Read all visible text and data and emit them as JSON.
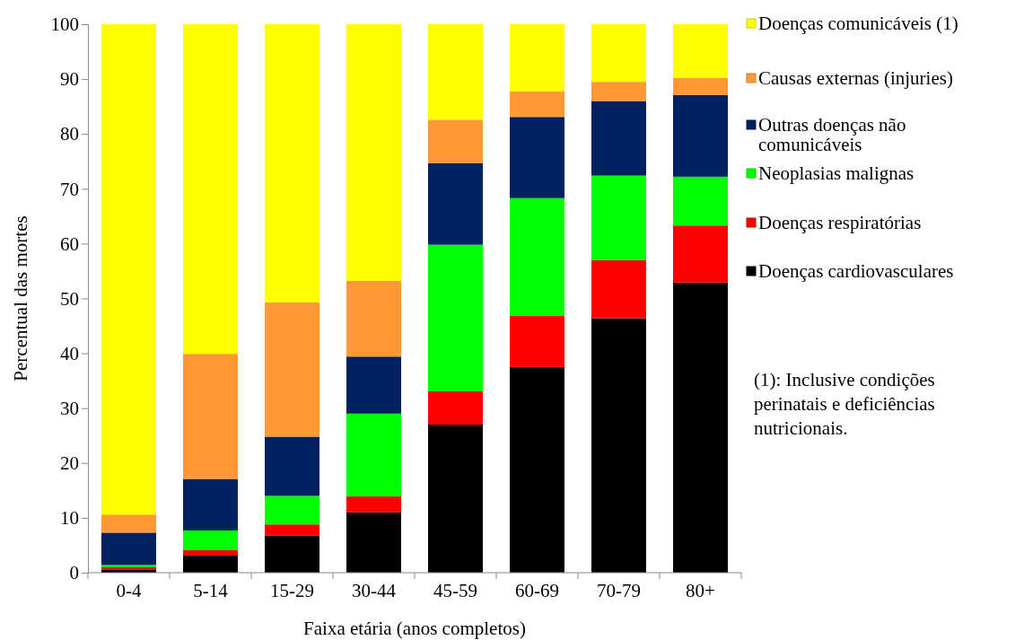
{
  "chart_data": {
    "type": "bar",
    "stacked": true,
    "xlabel": "Faixa etária (anos completos)",
    "ylabel": "Percentual das mortes",
    "categories": [
      "0-4",
      "5-14",
      "15-29",
      "30-44",
      "45-59",
      "60-69",
      "70-79",
      "80+"
    ],
    "ylim": [
      0,
      100
    ],
    "yticks": [
      0,
      10,
      20,
      30,
      40,
      50,
      60,
      70,
      80,
      90,
      100
    ],
    "grid": false,
    "legend": "right",
    "series": [
      {
        "name": "Doenças cardiovasculares",
        "color": "#000000",
        "values": [
          0.5,
          3.1,
          6.8,
          11.0,
          27.0,
          37.5,
          46.4,
          52.9
        ]
      },
      {
        "name": "Doenças respiratórias",
        "color": "#ff0000",
        "values": [
          0.5,
          1.0,
          2.0,
          2.9,
          6.1,
          9.3,
          10.6,
          10.4
        ]
      },
      {
        "name": "Neoplasias malignas",
        "color": "#00ff00",
        "values": [
          0.4,
          3.6,
          5.2,
          15.1,
          26.7,
          21.5,
          15.4,
          8.9
        ]
      },
      {
        "name": "Outras doenças não comunicáveis",
        "color": "#002060",
        "values": [
          5.9,
          9.4,
          10.8,
          10.4,
          14.9,
          14.8,
          13.6,
          14.9
        ]
      },
      {
        "name": "Causas externas (injuries)",
        "color": "#ff9933",
        "values": [
          3.3,
          22.8,
          24.5,
          13.8,
          7.9,
          4.7,
          3.5,
          3.1
        ]
      },
      {
        "name": "Doenças comunicáveis (1)",
        "color": "#ffff00",
        "values": [
          89.4,
          60.1,
          50.7,
          46.8,
          17.4,
          12.2,
          10.5,
          9.8
        ]
      }
    ],
    "annotations": [
      "(1): Inclusive condições perinatais e deficiências nutricionais."
    ]
  }
}
